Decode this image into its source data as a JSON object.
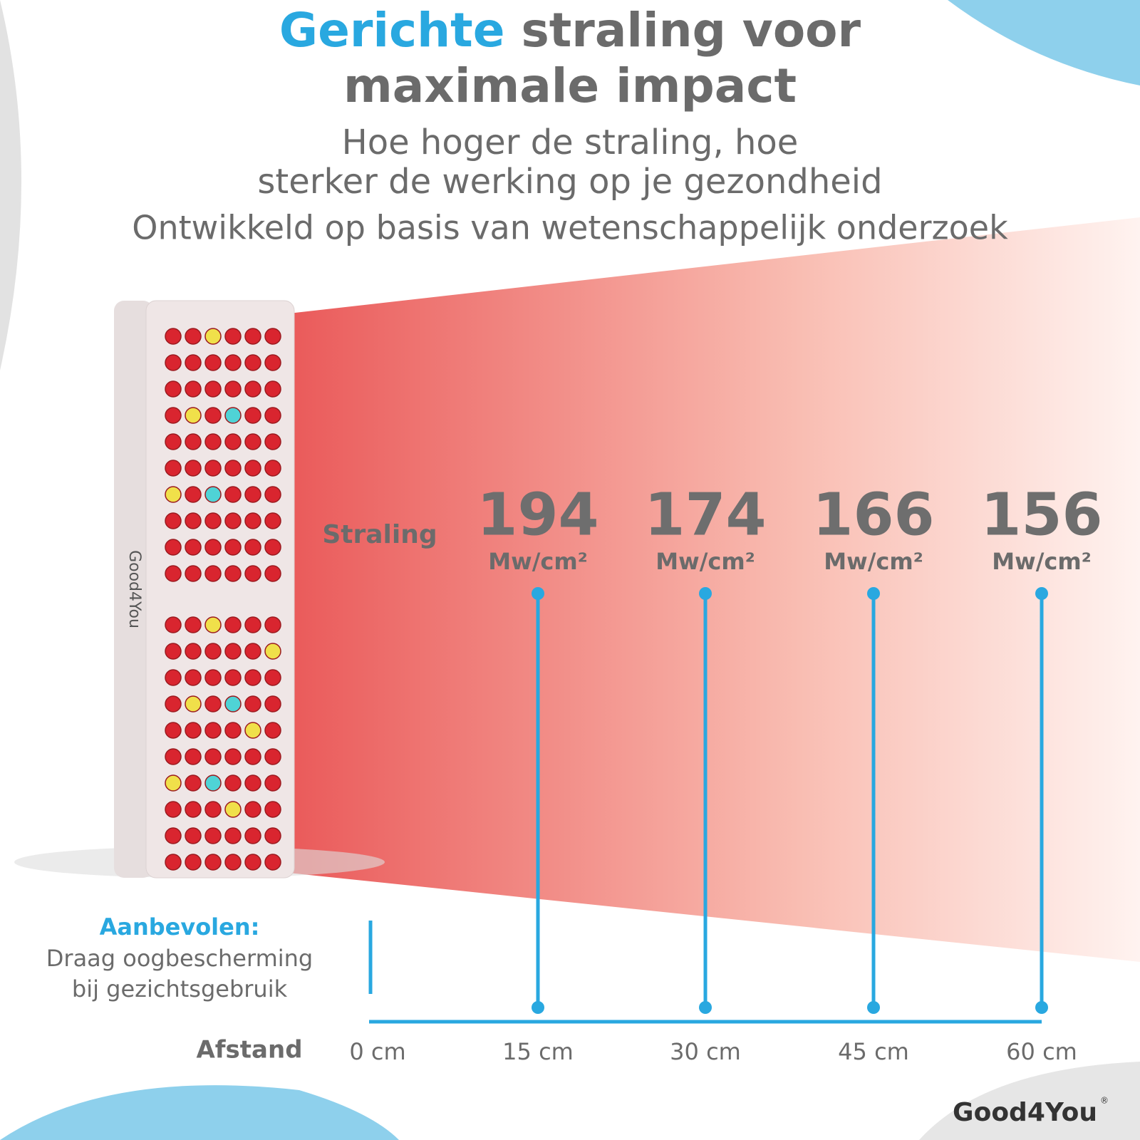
{
  "header": {
    "title_highlight": "Gerichte",
    "title_rest": "straling voor",
    "title_line2": "maximale impact",
    "subtitle_line1": "Hoe hoger de straling, hoe",
    "subtitle_line2": "sterker de werking op je gezondheid",
    "subtitle_line3": "Ontwikkeld op basis van wetenschappelijk onderzoek"
  },
  "radiation_label": "Straling",
  "distance_label": "Afstand",
  "origin_distance": "0 cm",
  "readings": [
    {
      "value": "194",
      "unit": "Mw/cm²",
      "distance": "15 cm"
    },
    {
      "value": "174",
      "unit": "Mw/cm²",
      "distance": "30 cm"
    },
    {
      "value": "166",
      "unit": "Mw/cm²",
      "distance": "45 cm"
    },
    {
      "value": "156",
      "unit": "Mw/cm²",
      "distance": "60 cm"
    }
  ],
  "recommendation": {
    "title": "Aanbevolen:",
    "line1": "Draag oogbescherming",
    "line2": "bij gezichtsgebruik"
  },
  "device": {
    "brand": "Good4You"
  },
  "logo": {
    "text": "Good4You",
    "mark": "®"
  }
}
